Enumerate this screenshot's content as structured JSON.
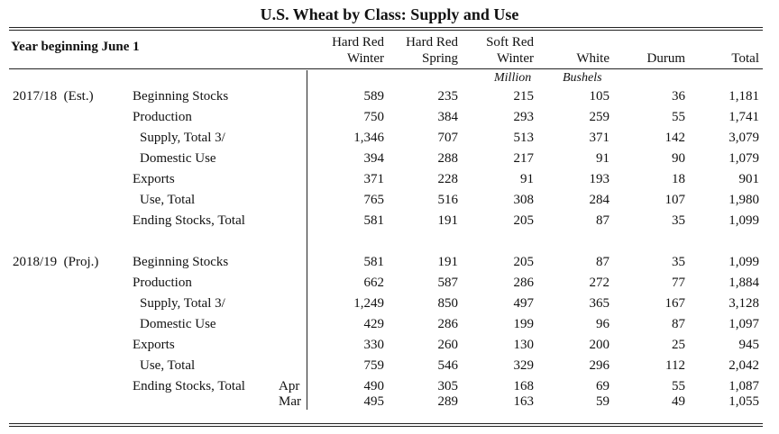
{
  "title": "U.S. Wheat by Class: Supply and Use",
  "year_label": "Year beginning June 1",
  "columns": [
    {
      "line1": "Hard Red",
      "line2": "Winter"
    },
    {
      "line1": "Hard Red",
      "line2": "Spring"
    },
    {
      "line1": "Soft Red",
      "line2": "Winter"
    },
    {
      "line1": "",
      "line2": "White"
    },
    {
      "line1": "",
      "line2": "Durum"
    },
    {
      "line1": "",
      "line2": "Total"
    }
  ],
  "units_left": "Million",
  "units_right": "Bushels",
  "sections": [
    {
      "period": "2017/18  (Est.)",
      "rows": [
        {
          "label": "Beginning Stocks",
          "indent": 0,
          "sub": "",
          "values": [
            "589",
            "235",
            "215",
            "105",
            "36",
            "1,181"
          ]
        },
        {
          "label": "Production",
          "indent": 0,
          "sub": "",
          "values": [
            "750",
            "384",
            "293",
            "259",
            "55",
            "1,741"
          ]
        },
        {
          "label": "Supply, Total 3/",
          "indent": 1,
          "sub": "",
          "values": [
            "1,346",
            "707",
            "513",
            "371",
            "142",
            "3,079"
          ]
        },
        {
          "label": "Domestic Use",
          "indent": 1,
          "sub": "",
          "values": [
            "394",
            "288",
            "217",
            "91",
            "90",
            "1,079"
          ]
        },
        {
          "label": "Exports",
          "indent": 0,
          "sub": "",
          "values": [
            "371",
            "228",
            "91",
            "193",
            "18",
            "901"
          ]
        },
        {
          "label": "Use, Total",
          "indent": 1,
          "sub": "",
          "values": [
            "765",
            "516",
            "308",
            "284",
            "107",
            "1,980"
          ]
        },
        {
          "label": "Ending Stocks, Total",
          "indent": 0,
          "sub": "",
          "values": [
            "581",
            "191",
            "205",
            "87",
            "35",
            "1,099"
          ]
        }
      ]
    },
    {
      "period": "2018/19  (Proj.)",
      "rows": [
        {
          "label": "Beginning Stocks",
          "indent": 0,
          "sub": "",
          "values": [
            "581",
            "191",
            "205",
            "87",
            "35",
            "1,099"
          ]
        },
        {
          "label": "Production",
          "indent": 0,
          "sub": "",
          "values": [
            "662",
            "587",
            "286",
            "272",
            "77",
            "1,884"
          ]
        },
        {
          "label": "Supply, Total 3/",
          "indent": 1,
          "sub": "",
          "values": [
            "1,249",
            "850",
            "497",
            "365",
            "167",
            "3,128"
          ]
        },
        {
          "label": "Domestic Use",
          "indent": 1,
          "sub": "",
          "values": [
            "429",
            "286",
            "199",
            "96",
            "87",
            "1,097"
          ]
        },
        {
          "label": "Exports",
          "indent": 0,
          "sub": "",
          "values": [
            "330",
            "260",
            "130",
            "200",
            "25",
            "945"
          ]
        },
        {
          "label": "Use, Total",
          "indent": 1,
          "sub": "",
          "values": [
            "759",
            "546",
            "329",
            "296",
            "112",
            "2,042"
          ]
        },
        {
          "label": "Ending Stocks, Total",
          "indent": 0,
          "sub": "Apr",
          "values": [
            "490",
            "305",
            "168",
            "69",
            "55",
            "1,087"
          ]
        },
        {
          "label": "",
          "indent": 0,
          "sub": "Mar",
          "values": [
            "495",
            "289",
            "163",
            "59",
            "49",
            "1,055"
          ]
        }
      ]
    }
  ]
}
